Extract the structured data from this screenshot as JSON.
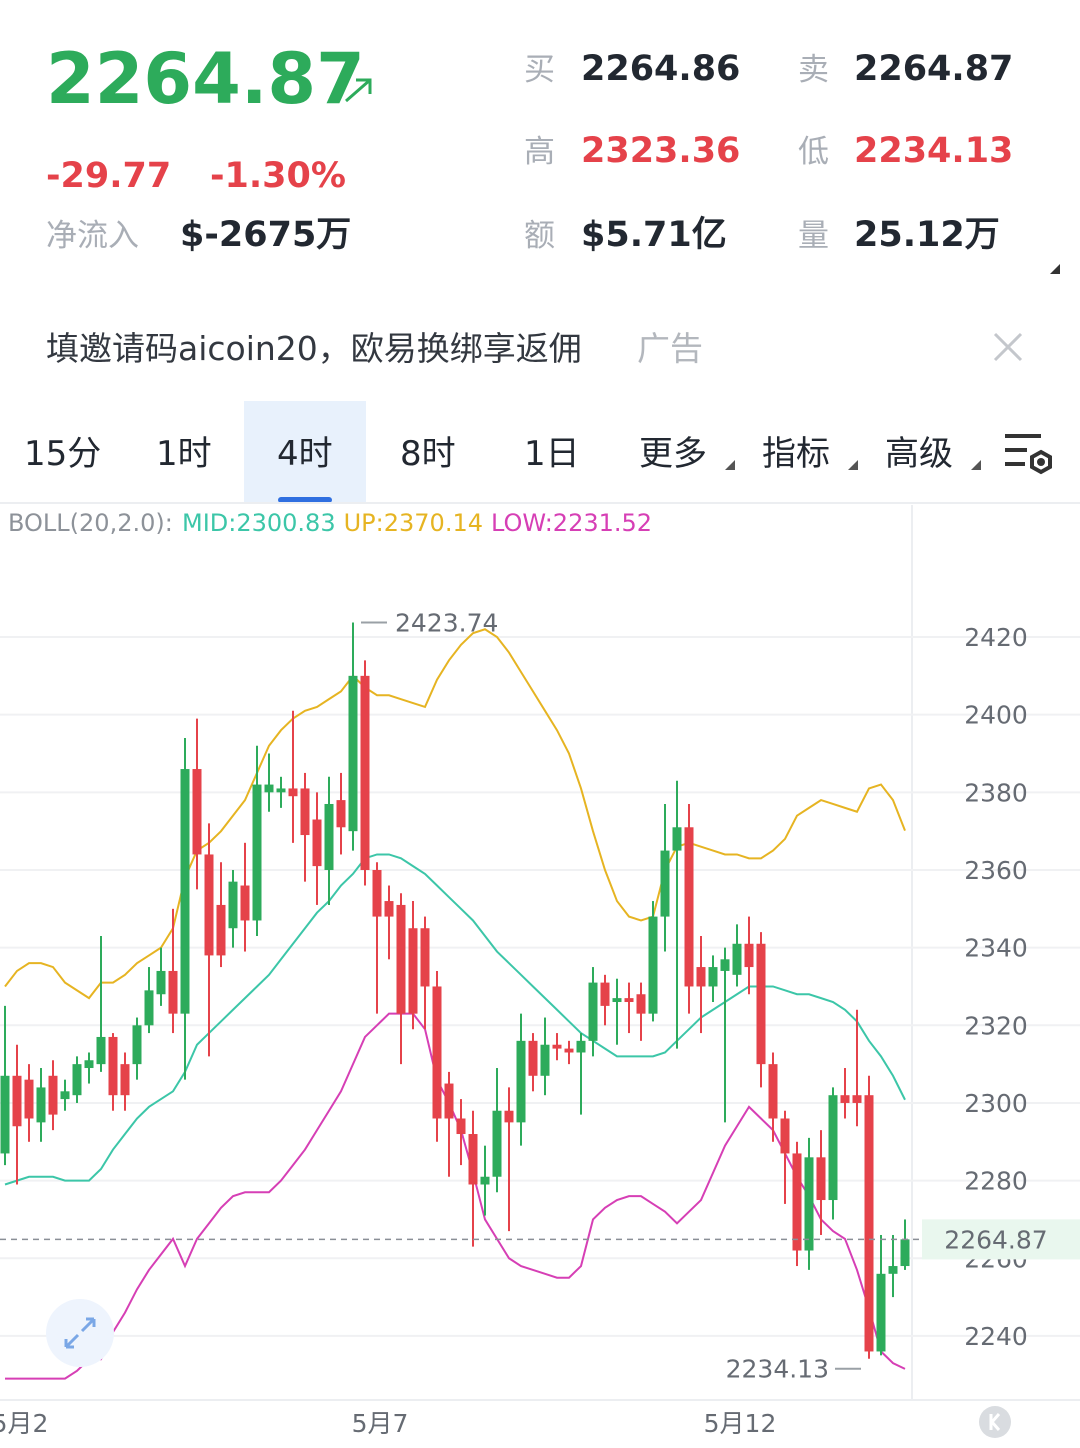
{
  "header": {
    "price": "2264.87",
    "change": "-29.77",
    "change_pct": "-1.30%",
    "net_inflow_label": "净流入",
    "net_inflow": "$-2675万",
    "stats": [
      {
        "label": "买",
        "value": "2264.86"
      },
      {
        "label": "卖",
        "value": "2264.87"
      },
      {
        "label": "高",
        "value": "2323.36"
      },
      {
        "label": "低",
        "value": "2234.13"
      },
      {
        "label": "额",
        "value": "$5.71亿"
      },
      {
        "label": "量",
        "value": "25.12万"
      }
    ]
  },
  "ad": {
    "text": "填邀请码aicoin20，欧易换绑享返佣",
    "tag": "广告"
  },
  "tabs": [
    "15分",
    "1时",
    "4时",
    "8时",
    "1日",
    "更多",
    "指标",
    "高级"
  ],
  "active_tab": 2,
  "chart_data": {
    "type": "candlestick",
    "indicator": "BOLL(20,2.0):",
    "up_color": "#2dab5b",
    "down_color": "#e5424a",
    "categories": [
      null,
      "5月2",
      null,
      null,
      null,
      null,
      null,
      null,
      null,
      null,
      null,
      null,
      null,
      null,
      null,
      null,
      null,
      null,
      null,
      null,
      null,
      null,
      null,
      null,
      null,
      null,
      null,
      null,
      null,
      null,
      null,
      "5月7",
      null,
      null,
      null,
      null,
      null,
      null,
      null,
      null,
      null,
      null,
      null,
      null,
      null,
      null,
      null,
      null,
      null,
      null,
      null,
      null,
      null,
      null,
      null,
      null,
      null,
      null,
      null,
      null,
      null,
      "5月12",
      null,
      null,
      null,
      null,
      null,
      null,
      null,
      null,
      null,
      null,
      null,
      null,
      null,
      null
    ],
    "open": [
      2287,
      2307,
      2306,
      2295,
      2307,
      2301,
      2302,
      2309,
      2310,
      2317,
      2310,
      2310,
      2320,
      2328,
      2334,
      2323,
      2386,
      2364,
      2351,
      2345,
      2356,
      2347,
      2380,
      2380,
      2381,
      2381,
      2373,
      2360,
      2378,
      2370,
      2410,
      2360,
      2352,
      2351,
      2345,
      2345,
      2330,
      2305,
      2296,
      2292,
      2279,
      2281,
      2298,
      2295,
      2316,
      2307,
      2315,
      2314,
      2313,
      2316,
      2331,
      2326,
      2327,
      2328,
      2323,
      2348,
      2365,
      2371,
      2335,
      2330,
      2334,
      2333,
      2341,
      2341,
      2310,
      2296,
      2287,
      2262,
      2286,
      2275,
      2302,
      2302,
      2302,
      2236,
      2256,
      2258
    ],
    "close": [
      2307,
      2294,
      2296,
      2304,
      2297,
      2303,
      2310,
      2311,
      2317,
      2302,
      2302,
      2320,
      2329,
      2334,
      2323,
      2386,
      2364,
      2338,
      2338,
      2357,
      2347,
      2382,
      2382,
      2381,
      2379,
      2369,
      2361,
      2377,
      2371,
      2410,
      2360,
      2348,
      2348,
      2323,
      2323,
      2330,
      2296,
      2296,
      2292,
      2279,
      2281,
      2298,
      2295,
      2316,
      2307,
      2315,
      2314,
      2313,
      2316,
      2331,
      2325,
      2327,
      2326,
      2323,
      2348,
      2365,
      2371,
      2330,
      2330,
      2335,
      2337,
      2341,
      2335,
      2310,
      2296,
      2287,
      2262,
      2286,
      2275,
      2302,
      2300,
      2300,
      2236,
      2256,
      2258,
      2264.87
    ],
    "high": [
      2325,
      2315,
      2310,
      2309,
      2311,
      2306,
      2312,
      2313,
      2343,
      2318,
      2313,
      2322,
      2335,
      2340,
      2350,
      2394,
      2399,
      2372,
      2362,
      2360,
      2367,
      2392,
      2390,
      2384,
      2401,
      2385,
      2380,
      2384,
      2385,
      2423.74,
      2414,
      2362,
      2356,
      2354,
      2352,
      2348,
      2334,
      2308,
      2301,
      2298,
      2289,
      2309,
      2304,
      2323,
      2318,
      2322,
      2318,
      2316,
      2318,
      2335,
      2333,
      2332,
      2331,
      2331,
      2352,
      2377,
      2383,
      2377,
      2343,
      2338,
      2340,
      2346,
      2348,
      2344,
      2313,
      2298,
      2290,
      2291,
      2293,
      2304,
      2309,
      2324,
      2307,
      2266,
      2266,
      2270
    ],
    "low": [
      2284,
      2279,
      2290,
      2290,
      2293,
      2298,
      2300,
      2305,
      2308,
      2298,
      2298,
      2306,
      2318,
      2325,
      2318,
      2306,
      2355,
      2312,
      2335,
      2340,
      2339,
      2343,
      2375,
      2376,
      2367,
      2357,
      2351,
      2351,
      2364,
      2365,
      2356,
      2323,
      2337,
      2310,
      2319,
      2319,
      2290,
      2281,
      2284,
      2263,
      2271,
      2277,
      2267,
      2289,
      2303,
      2302,
      2311,
      2310,
      2297,
      2312,
      2320,
      2315,
      2318,
      2316,
      2321,
      2339,
      2314,
      2323,
      2318,
      2326,
      2295,
      2330,
      2328,
      2304,
      2290,
      2274,
      2258,
      2257,
      2266,
      2270,
      2296,
      2294,
      2234.13,
      2235,
      2250,
      2257
    ],
    "series": [
      {
        "name": "MID:2300.83",
        "color": "#3cc6a8",
        "values": [
          2279,
          2280,
          2281,
          2281,
          2281,
          2280,
          2280,
          2280,
          2283,
          2288,
          2292,
          2296,
          2299,
          2301,
          2303,
          2308,
          2315,
          2318,
          2321,
          2324,
          2327,
          2330,
          2333,
          2337,
          2341,
          2345,
          2349,
          2352,
          2356,
          2359,
          2363,
          2364,
          2364,
          2363,
          2361,
          2359,
          2356,
          2353,
          2350,
          2347,
          2343,
          2339,
          2336,
          2333,
          2330,
          2327,
          2324,
          2321,
          2318,
          2316,
          2314,
          2312,
          2312,
          2312,
          2312,
          2313,
          2316,
          2319,
          2322,
          2324,
          2326,
          2328,
          2330,
          2330,
          2330,
          2329,
          2328,
          2328,
          2327,
          2326,
          2324,
          2321,
          2316,
          2312,
          2307,
          2300.83
        ]
      },
      {
        "name": "UP:2370.14",
        "color": "#e6b422",
        "values": [
          2330,
          2334,
          2336,
          2336,
          2335,
          2331,
          2329,
          2327,
          2331,
          2331,
          2333,
          2336,
          2338,
          2340,
          2345,
          2358,
          2365,
          2367,
          2370,
          2374,
          2378,
          2385,
          2392,
          2396,
          2399,
          2401,
          2402,
          2404,
          2406,
          2410,
          2407,
          2405,
          2405,
          2404,
          2403,
          2402,
          2409,
          2414,
          2418,
          2421,
          2422,
          2420,
          2416,
          2411,
          2406,
          2401,
          2396,
          2390,
          2381,
          2370,
          2360,
          2352,
          2348,
          2347,
          2348,
          2360,
          2366,
          2367,
          2366,
          2365,
          2364,
          2364,
          2363,
          2363,
          2365,
          2368,
          2374,
          2376,
          2378,
          2377,
          2376,
          2375,
          2381,
          2382,
          2378,
          2370.14
        ]
      },
      {
        "name": "LOW:2231.52",
        "color": "#d63fb5",
        "values": [
          2229,
          2229,
          2229,
          2229,
          2229,
          2229,
          2231,
          2234,
          2234,
          2241,
          2246,
          2252,
          2257,
          2261,
          2265,
          2258,
          2265,
          2269,
          2273,
          2276,
          2277,
          2277,
          2277,
          2280,
          2284,
          2288,
          2293,
          2298,
          2303,
          2310,
          2317,
          2320,
          2323,
          2323,
          2323,
          2319,
          2306,
          2300,
          2293,
          2282,
          2270,
          2265,
          2260,
          2258,
          2257,
          2256,
          2255,
          2255,
          2258,
          2270,
          2273,
          2275,
          2276,
          2276,
          2274,
          2272,
          2269,
          2272,
          2275,
          2282,
          2289,
          2294,
          2299,
          2296,
          2293,
          2287,
          2281,
          2276,
          2270,
          2267,
          2265,
          2257,
          2247,
          2236,
          2233,
          2231.52
        ]
      }
    ],
    "ylim": [
      2223.5,
      2443.7
    ],
    "yticks": [
      2240,
      2260,
      2280,
      2300,
      2320,
      2340,
      2360,
      2380,
      2400,
      2420
    ],
    "grid": true,
    "max_label": 2423.74,
    "min_label": 2234.13,
    "last_price": 2264.87
  }
}
